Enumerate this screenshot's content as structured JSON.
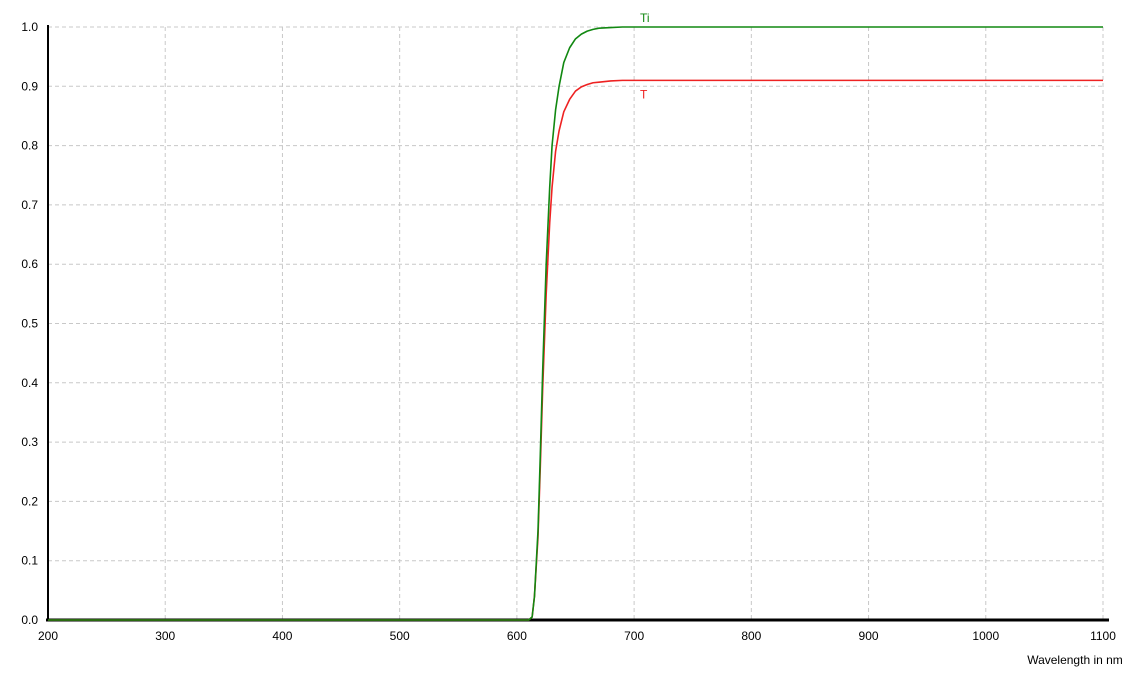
{
  "chart_data": {
    "type": "line",
    "title": "",
    "xlabel": "Wavelength in nm",
    "ylabel": "",
    "xlim": [
      200,
      1100
    ],
    "ylim": [
      0,
      1.0
    ],
    "grid": true,
    "xticks": [
      200,
      300,
      400,
      500,
      600,
      700,
      800,
      900,
      1000,
      1100
    ],
    "yticks": [
      0.0,
      0.1,
      0.2,
      0.3,
      0.4,
      0.5,
      0.6,
      0.7,
      0.8,
      0.9,
      1.0
    ],
    "series": [
      {
        "name": "Ti",
        "color": "#118811",
        "x": [
          200,
          600,
          610,
          613,
          615,
          618,
          620,
          622,
          625,
          628,
          630,
          633,
          636,
          640,
          645,
          650,
          655,
          660,
          665,
          670,
          680,
          690,
          700,
          750,
          800,
          900,
          1000,
          1100
        ],
        "y": [
          0.0,
          0.0,
          0.0,
          0.005,
          0.04,
          0.15,
          0.28,
          0.42,
          0.6,
          0.73,
          0.8,
          0.86,
          0.9,
          0.94,
          0.965,
          0.98,
          0.988,
          0.993,
          0.996,
          0.998,
          0.999,
          1.0,
          1.0,
          1.0,
          1.0,
          1.0,
          1.0,
          1.0
        ]
      },
      {
        "name": "T",
        "color": "#ee2222",
        "x": [
          200,
          600,
          610,
          613,
          615,
          618,
          620,
          622,
          625,
          628,
          630,
          633,
          636,
          640,
          645,
          650,
          655,
          660,
          665,
          670,
          680,
          690,
          700,
          750,
          800,
          900,
          1000,
          1100
        ],
        "y": [
          0.0,
          0.0,
          0.0,
          0.005,
          0.04,
          0.14,
          0.26,
          0.39,
          0.55,
          0.67,
          0.73,
          0.79,
          0.825,
          0.857,
          0.878,
          0.892,
          0.899,
          0.903,
          0.906,
          0.907,
          0.909,
          0.91,
          0.91,
          0.91,
          0.91,
          0.91,
          0.91,
          0.91
        ]
      }
    ]
  }
}
